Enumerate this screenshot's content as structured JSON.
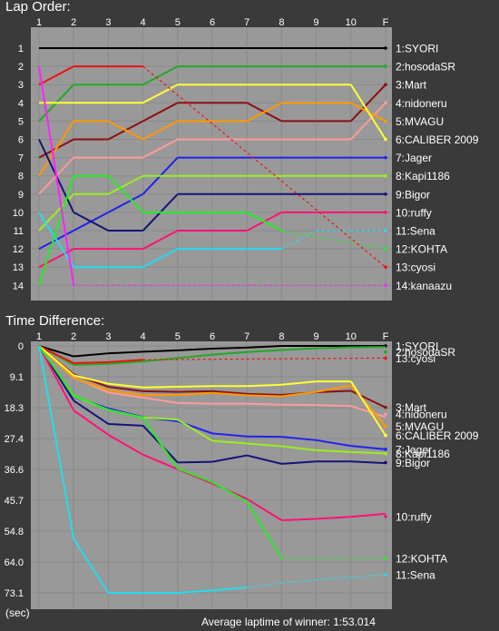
{
  "lap_order": {
    "title": "Lap Order:",
    "chart_data": {
      "type": "line",
      "x": [
        "1",
        "2",
        "3",
        "4",
        "5",
        "6",
        "7",
        "8",
        "9",
        "10",
        "F"
      ],
      "yticks": [
        1,
        2,
        3,
        4,
        5,
        6,
        7,
        8,
        9,
        10,
        11,
        12,
        13,
        14
      ],
      "y_reversed": true,
      "grid": true,
      "series": [
        {
          "name": "1:SYORI",
          "color": "#000000",
          "values": [
            1,
            1,
            1,
            1,
            1,
            1,
            1,
            1,
            1,
            1,
            1
          ],
          "end": 1
        },
        {
          "name": "2:hosodaSR",
          "color": "#22aa22",
          "values": [
            5,
            3,
            3,
            3,
            2,
            2,
            2,
            2,
            2,
            2,
            2
          ],
          "end": 2
        },
        {
          "name": "3:Mart",
          "color": "#8b1010",
          "values": [
            7,
            6,
            6,
            5,
            4,
            4,
            4,
            5,
            5,
            5,
            3
          ],
          "end": 3
        },
        {
          "name": "4:nidoneru",
          "color": "#ff9a9a",
          "values": [
            9,
            7,
            7,
            7,
            6,
            6,
            6,
            6,
            6,
            6,
            4
          ],
          "end": 4
        },
        {
          "name": "5:MVAGU",
          "color": "#ff9900",
          "values": [
            8,
            5,
            5,
            6,
            5,
            5,
            5,
            4,
            4,
            4,
            5
          ],
          "end": 5
        },
        {
          "name": "6:CALIBER 2009",
          "color": "#ffff33",
          "values": [
            4,
            4,
            4,
            4,
            3,
            3,
            3,
            3,
            3,
            3,
            6
          ],
          "end": 6
        },
        {
          "name": "7:Jager",
          "color": "#2222ee",
          "values": [
            12,
            11,
            10,
            9,
            7,
            7,
            7,
            7,
            7,
            7,
            7
          ],
          "end": 7
        },
        {
          "name": "8:Kapi1186",
          "color": "#99ee22",
          "values": [
            11,
            9,
            9,
            8,
            8,
            8,
            8,
            8,
            8,
            8,
            8
          ],
          "end": 8
        },
        {
          "name": "9:Bigor",
          "color": "#141478",
          "values": [
            6,
            10,
            11,
            11,
            9,
            9,
            9,
            9,
            9,
            9,
            9
          ],
          "end": 9
        },
        {
          "name": "10:ruffy",
          "color": "#ff1177",
          "values": [
            13,
            12,
            12,
            12,
            11,
            11,
            11,
            10,
            10,
            10,
            10
          ],
          "end": 10
        },
        {
          "name": "11:Sena",
          "color": "#22ddee",
          "values": [
            10,
            13,
            13,
            13,
            12,
            12,
            12,
            12,
            11,
            11,
            null
          ],
          "end": 11,
          "dashed_from": 7
        },
        {
          "name": "12:KOHTA",
          "color": "#22ee22",
          "values": [
            14,
            8,
            8,
            10,
            10,
            10,
            10,
            11,
            null,
            null,
            null
          ],
          "end": 12,
          "dashed_from": 8
        },
        {
          "name": "13:cyosi",
          "color": "#ee1111",
          "values": [
            3,
            2,
            2,
            2,
            null,
            null,
            null,
            null,
            null,
            null,
            null
          ],
          "end": 13,
          "dashed_from": 4
        },
        {
          "name": "14:kanaazu",
          "color": "#ff22ff",
          "values": [
            2,
            14,
            null,
            null,
            null,
            null,
            null,
            null,
            null,
            null,
            null
          ],
          "end": 14,
          "dashed_from": 2
        }
      ]
    }
  },
  "time_difference": {
    "title": "Time Difference:",
    "chart_data": {
      "type": "line",
      "x": [
        "1",
        "2",
        "3",
        "4",
        "5",
        "6",
        "7",
        "8",
        "9",
        "10",
        "F"
      ],
      "yticks": [
        "0",
        "9.1",
        "18.3",
        "27.4",
        "36.6",
        "45.7",
        "54.8",
        "64.0",
        "73.1"
      ],
      "ylim": [
        0,
        78.6
      ],
      "y_reversed": true,
      "ylabel": "(sec)",
      "grid": true,
      "footer": "Average laptime of winner: 1:53.014",
      "series": [
        {
          "name": "1:SYORI",
          "color": "#000000",
          "values": [
            0,
            3.1,
            2.2,
            1.7,
            1.3,
            0.8,
            0.5,
            0,
            0,
            0,
            0
          ],
          "label_y": 0
        },
        {
          "name": "2:hosodaSR",
          "color": "#22aa22",
          "values": [
            0,
            5.6,
            5.3,
            4.6,
            3.6,
            2.6,
            1.8,
            1.2,
            0.7,
            0.4,
            0.3
          ],
          "label_y": 1.8
        },
        {
          "name": "13:cyosi",
          "color": "#ee1111",
          "values": [
            0,
            5.1,
            4.8,
            4.1,
            null,
            null,
            null,
            null,
            null,
            null,
            null
          ],
          "label_y": 3.6,
          "dashed_from": 4
        },
        {
          "name": "3:Mart",
          "color": "#8b1010",
          "values": [
            0,
            8.4,
            12.1,
            13.4,
            13.6,
            13.4,
            14.2,
            14.5,
            13.7,
            13.3,
            18.2
          ],
          "label_y": 18.2
        },
        {
          "name": "4:nidoneru",
          "color": "#ff9a9a",
          "values": [
            0,
            9.3,
            13.8,
            15.3,
            16.9,
            17.1,
            17.1,
            17.4,
            17.5,
            17.8,
            21.1
          ],
          "label_y": 20.2
        },
        {
          "name": "5:MVAGU",
          "color": "#ff9900",
          "values": [
            0,
            9.5,
            13.1,
            14.6,
            14.5,
            13.9,
            14.6,
            14.9,
            13.6,
            11.7,
            23.8
          ],
          "label_y": 23.8
        },
        {
          "name": "6:CALIBER 2009",
          "color": "#ffff33",
          "values": [
            0,
            8.7,
            11.2,
            12.3,
            12.1,
            11.9,
            11.9,
            11.5,
            10.5,
            10.5,
            26.5
          ],
          "label_y": 26.5
        },
        {
          "name": "7:Jager",
          "color": "#2222ee",
          "values": [
            0,
            15.1,
            18.5,
            21.1,
            22.3,
            25.9,
            26.8,
            26.9,
            27.9,
            29.6,
            30.6
          ],
          "label_y": 30.6
        },
        {
          "name": "8:Kapi1186",
          "color": "#99ee22",
          "values": [
            0,
            14.9,
            18.9,
            21.2,
            21.8,
            28.1,
            28.9,
            29.7,
            30.9,
            31.4,
            31.8
          ],
          "label_y": 31.9
        },
        {
          "name": "9:Bigor",
          "color": "#141478",
          "values": [
            0,
            16.2,
            23.1,
            23.6,
            34.5,
            34.3,
            32.4,
            34.9,
            34.2,
            34.2,
            34.7
          ],
          "label_y": 34.5
        },
        {
          "name": "10:ruffy",
          "color": "#ff1177",
          "values": [
            0,
            19.1,
            26.3,
            32.2,
            36.5,
            40.7,
            45.3,
            51.6,
            51.2,
            50.6,
            49.7
          ],
          "label_y": 50.5
        },
        {
          "name": "12:KOHTA",
          "color": "#22ee22",
          "values": [
            0,
            14.6,
            19.0,
            21.3,
            36.3,
            40.3,
            46.1,
            62.9,
            null,
            null,
            null
          ],
          "label_y": 62.9,
          "dashed_from": 7
        },
        {
          "name": "11:Sena",
          "color": "#22ddee",
          "values": [
            0,
            57.1,
            73.1,
            73.1,
            73.1,
            72.4,
            71.5,
            70.2,
            69.2,
            68.5,
            null
          ],
          "label_y": 67.7,
          "dashed_from": 6
        }
      ]
    }
  }
}
